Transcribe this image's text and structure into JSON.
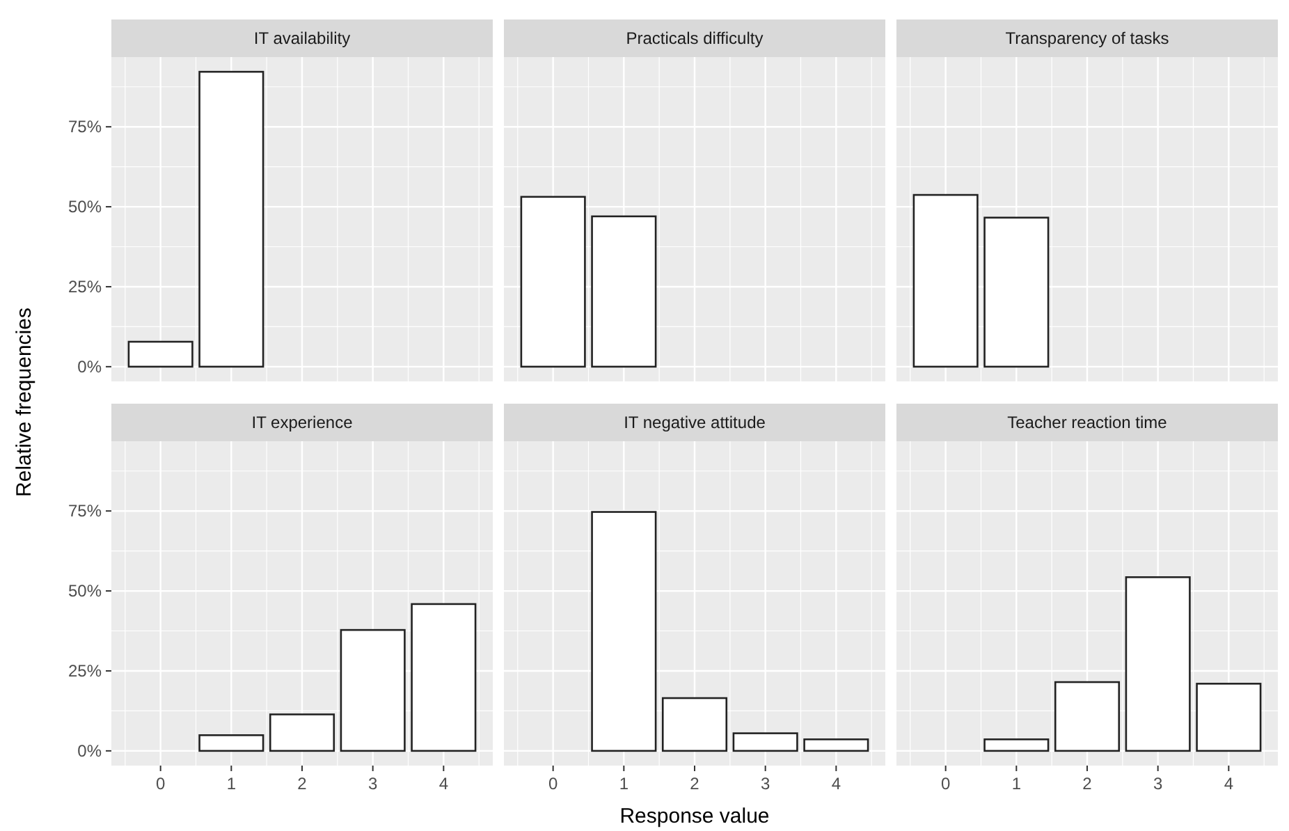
{
  "chart_data": [
    {
      "type": "bar",
      "title": "IT availability",
      "x": [
        0,
        1
      ],
      "values": [
        7.8,
        92.2
      ],
      "color": "#ffffff",
      "xlim": [
        -0.695,
        4.695
      ],
      "ylim": [
        -4.6,
        96.8
      ],
      "xticks": [
        0,
        1,
        2,
        3,
        4
      ],
      "yticks": [
        {
          "value": 0,
          "label": "0%"
        },
        {
          "value": 25,
          "label": "25%"
        },
        {
          "value": 50,
          "label": "50%"
        },
        {
          "value": 75,
          "label": "75%"
        }
      ],
      "grid": true,
      "tick_labels": "y"
    },
    {
      "type": "bar",
      "title": "Practicals difficulty",
      "x": [
        0,
        1
      ],
      "values": [
        53.1,
        47.0
      ],
      "color": "#ffffff",
      "xlim": [
        -0.695,
        4.695
      ],
      "ylim": [
        -4.6,
        96.8
      ],
      "xticks": [
        0,
        1,
        2,
        3,
        4
      ],
      "yticks": [
        0,
        25,
        50,
        75
      ],
      "grid": true,
      "tick_labels": false
    },
    {
      "type": "bar",
      "title": "Transparency of tasks",
      "x": [
        0,
        1
      ],
      "values": [
        53.7,
        46.6
      ],
      "color": "#ffffff",
      "xlim": [
        -0.695,
        4.695
      ],
      "ylim": [
        -4.6,
        96.8
      ],
      "xticks": [
        0,
        1,
        2,
        3,
        4
      ],
      "yticks": [
        0,
        25,
        50,
        75
      ],
      "grid": true,
      "tick_labels": false
    },
    {
      "type": "bar",
      "title": "IT experience",
      "ylabel": "Relative frequencies",
      "x": [
        1,
        2,
        3,
        4
      ],
      "values": [
        4.9,
        11.4,
        37.8,
        45.9
      ],
      "color": "#ffffff",
      "xlim": [
        -0.695,
        4.695
      ],
      "ylim": [
        -4.6,
        96.8
      ],
      "xticks": [
        0,
        1,
        2,
        3,
        4
      ],
      "yticks": [
        {
          "value": 0,
          "label": "0%"
        },
        {
          "value": 25,
          "label": "25%"
        },
        {
          "value": 50,
          "label": "50%"
        },
        {
          "value": 75,
          "label": "75%"
        }
      ],
      "grid": true
    },
    {
      "type": "bar",
      "title": "IT negative attitude",
      "xlabel": "Response value",
      "x": [
        1,
        2,
        3,
        4
      ],
      "values": [
        74.7,
        16.5,
        5.5,
        3.6
      ],
      "color": "#ffffff",
      "xlim": [
        -0.695,
        4.695
      ],
      "ylim": [
        -4.6,
        96.8
      ],
      "xticks": [
        0,
        1,
        2,
        3,
        4
      ],
      "yticks": [
        0,
        25,
        50,
        75
      ],
      "grid": true,
      "tick_labels": "x"
    },
    {
      "type": "bar",
      "title": "Teacher reaction time",
      "x": [
        1,
        2,
        3,
        4
      ],
      "values": [
        3.6,
        21.5,
        54.3,
        21.0
      ],
      "color": "#ffffff",
      "xlim": [
        -0.695,
        4.695
      ],
      "ylim": [
        -4.6,
        96.8
      ],
      "xticks": [
        0,
        1,
        2,
        3,
        4
      ],
      "yticks": [
        0,
        25,
        50,
        75
      ],
      "grid": true,
      "tick_labels": "x"
    }
  ]
}
